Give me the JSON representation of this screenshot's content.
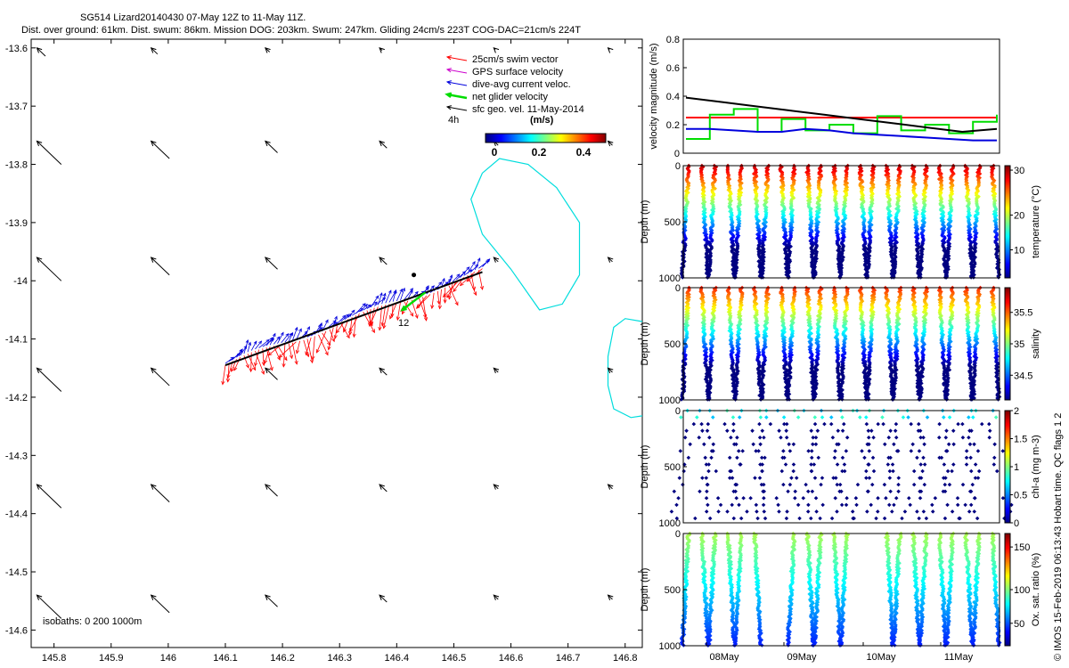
{
  "header": {
    "title": "SG514 Lizard20140430 07-May 12Z to 11-May 11Z.",
    "subtitle": "Dist. over ground: 61km. Dist. swum: 86km. Mission DOG: 203km. Swum: 247km. Gliding 24cm/s 223T COG-DAC=21cm/s 224T"
  },
  "credit": "© IMOS 15-Feb-2019 06:13:43 Hobart time. QC flags 1  2",
  "colors": {
    "swim": "#ff0000",
    "gps": "#cc00cc",
    "dac": "#0000dd",
    "net": "#00dd00",
    "geo": "#000000",
    "isobath": "#00dddd"
  },
  "map": {
    "xlim": [
      145.76,
      146.83
    ],
    "ylim": [
      -14.63,
      -13.585
    ],
    "xticks": [
      "145.8",
      "145.9",
      "146",
      "146.1",
      "146.2",
      "146.3",
      "146.4",
      "146.5",
      "146.6",
      "146.7",
      "146.8"
    ],
    "yticks": [
      "-13.6",
      "-13.7",
      "-13.8",
      "-13.9",
      "-14",
      "-14.1",
      "-14.2",
      "-14.3",
      "-14.4",
      "-14.5",
      "-14.6"
    ],
    "legend": [
      "25cm/s swim vector",
      "GPS surface velocity",
      "dive-avg current veloc.",
      "net glider velocity",
      "sfc geo. vel. 11-May-2014"
    ],
    "time_label": "4h",
    "colorbar_title": "(m/s)",
    "colorbar_ticks": [
      "0",
      "0.2",
      "0.4"
    ],
    "waypoint_label": "12",
    "isobath_label": "isobaths: 0   200  1000m",
    "track_start": [
      146.1,
      -14.145
    ],
    "track_end": [
      146.55,
      -13.985
    ],
    "geo_arrow_rows": [
      -13.6,
      -13.76,
      -13.96,
      -14.15,
      -14.35,
      -14.54
    ],
    "geo_arrow_cols": [
      145.77,
      145.97,
      146.17,
      146.37,
      146.57,
      146.77
    ]
  },
  "velocity_panel": {
    "ylabel": "velocity magnitude (m/s)",
    "yticks": [
      "0",
      "0.2",
      "0.4",
      "0.6",
      "0.8"
    ],
    "ylim": [
      0,
      0.8
    ],
    "series": [
      {
        "name": "25cm/s swim vector",
        "color": "#ff0000",
        "values": [
          0.25,
          0.25,
          0.25,
          0.25,
          0.25,
          0.25,
          0.25,
          0.25,
          0.25,
          0.25,
          0.25,
          0.25,
          0.25,
          0.25
        ]
      },
      {
        "name": "net glider velocity",
        "color": "#00dd00",
        "values": [
          0.1,
          0.27,
          0.31,
          0.15,
          0.24,
          0.16,
          0.2,
          0.14,
          0.26,
          0.16,
          0.2,
          0.14,
          0.22,
          0.27
        ]
      },
      {
        "name": "dive-avg current veloc.",
        "color": "#0000dd",
        "values": [
          0.17,
          0.17,
          0.16,
          0.15,
          0.15,
          0.17,
          0.16,
          0.14,
          0.13,
          0.12,
          0.11,
          0.1,
          0.09,
          0.09
        ]
      },
      {
        "name": "sfc geo. vel.",
        "color": "#000000",
        "values": [
          0.39,
          0.36,
          0.33,
          0.3,
          0.27,
          0.24,
          0.21,
          0.18,
          0.15,
          0.17
        ]
      }
    ]
  },
  "profile_panels": [
    {
      "cbar_label": "temperature (°C)",
      "cbar_ticks": [
        "10",
        "20",
        "30"
      ],
      "ylabel": "Depth (m)",
      "yticks": [
        "0",
        "500",
        "1000"
      ],
      "dives": 24,
      "variable": "temperature"
    },
    {
      "cbar_label": "salinity",
      "cbar_ticks": [
        "34.5",
        "35",
        "35.5"
      ],
      "ylabel": "Depth (m)",
      "yticks": [
        "0",
        "500",
        "1000"
      ],
      "dives": 24,
      "variable": "salinity"
    },
    {
      "cbar_label": "chl-a (mg m-3)",
      "cbar_ticks": [
        "0",
        "0.5",
        "1",
        "1.5",
        "2"
      ],
      "ylabel": "Depth (m)",
      "yticks": [
        "0",
        "500",
        "1000"
      ],
      "dives": 24,
      "variable": "chl"
    },
    {
      "cbar_label": "Ox. sat. ratio (%)",
      "cbar_ticks": [
        "50",
        "100",
        "150"
      ],
      "ylabel": "Depth (m)",
      "yticks": [
        "0",
        "500",
        "1000"
      ],
      "dives": 24,
      "variable": "oxygen"
    }
  ],
  "time_axis": [
    "08May",
    "09May",
    "10May",
    "11May"
  ]
}
